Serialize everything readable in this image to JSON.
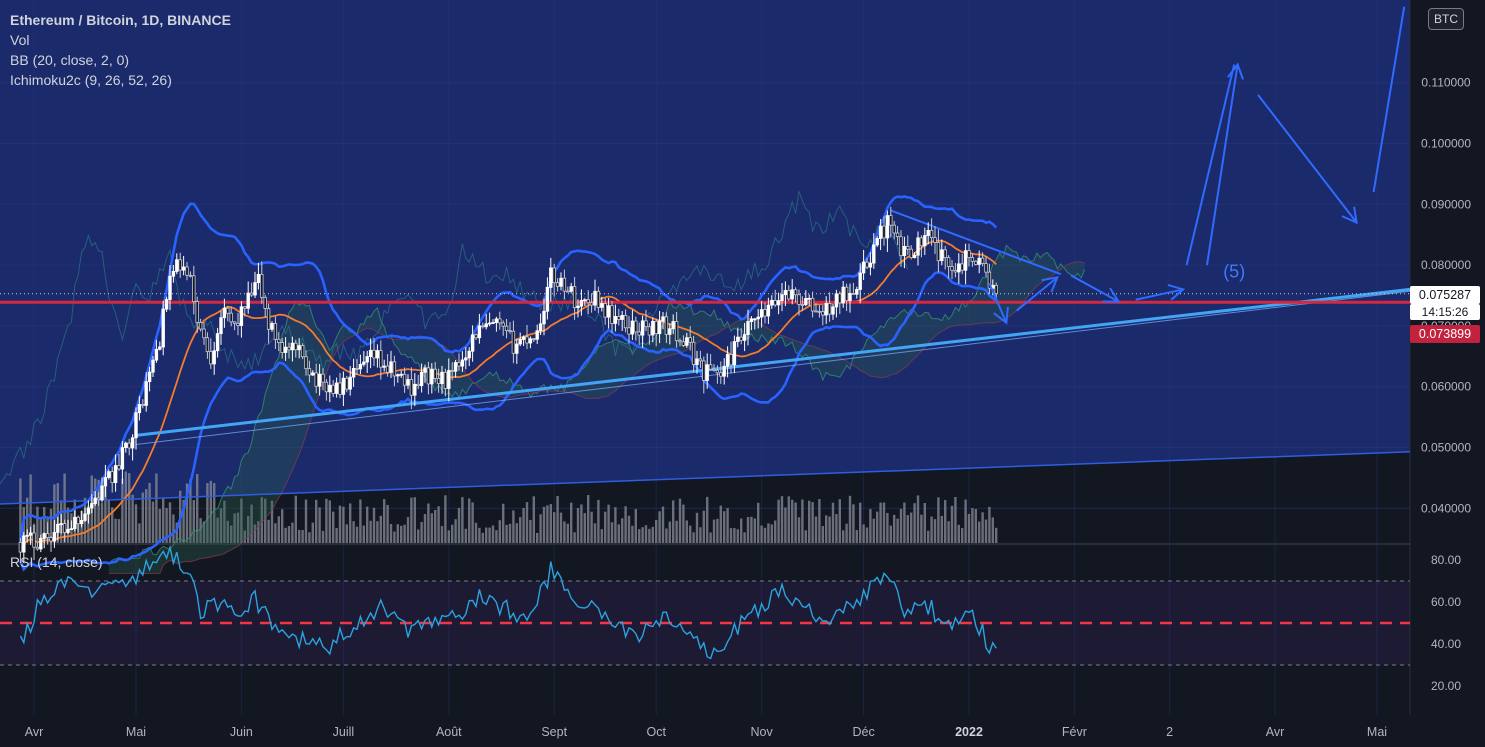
{
  "legend": {
    "title": "Ethereum / Bitcoin, 1D, BINANCE",
    "vol": "Vol",
    "bb": "BB (20, close, 2, 0)",
    "ichimoku": "Ichimoku2c (9, 26, 52, 26)"
  },
  "rsi_label": "RSI (14, close)",
  "currency_badge": "BTC",
  "price_tag": "0.075287",
  "countdown": "14:15:26",
  "level_tag": "0.073899",
  "wave_label": "(5)",
  "colors": {
    "background": "#131722",
    "chart_area": "#1a2a6b",
    "bb_band": "#2962ff",
    "trendline": "#42a5f5",
    "level": "#d5283f",
    "ma": "#f57c2a",
    "arrows": "#2f6bff",
    "rsi_line": "#2aa3e0",
    "rsi_mid": "#f23645"
  },
  "chart_data": [
    {
      "type": "candlestick",
      "title": "Ethereum / Bitcoin, 1D, BINANCE",
      "y_ticks": [
        "0.040000",
        "0.050000",
        "0.060000",
        "0.070000",
        "0.080000",
        "0.090000",
        "0.100000",
        "0.110000"
      ],
      "y_tick_values": [
        0.04,
        0.05,
        0.06,
        0.07,
        0.08,
        0.09,
        0.1,
        0.11
      ],
      "x_ticks": [
        "Avr",
        "Mai",
        "Juin",
        "Juill",
        "Août",
        "Sept",
        "Oct",
        "Nov",
        "Déc",
        "2022",
        "Févr",
        "2",
        "Avr",
        "Mai"
      ],
      "x_tick_bold": [
        "2022"
      ],
      "ylim": [
        0.0337,
        0.1223
      ],
      "current_price": 0.075287,
      "horizontal_level": 0.073899,
      "closes_anchors": [
        {
          "d": "2021-03-28",
          "c": 0.0344
        },
        {
          "d": "2021-04-03",
          "c": 0.035
        },
        {
          "d": "2021-04-12",
          "c": 0.0375
        },
        {
          "d": "2021-04-20",
          "c": 0.0422
        },
        {
          "d": "2021-04-26",
          "c": 0.047
        },
        {
          "d": "2021-05-01",
          "c": 0.0545
        },
        {
          "d": "2021-05-05",
          "c": 0.062
        },
        {
          "d": "2021-05-08",
          "c": 0.068
        },
        {
          "d": "2021-05-11",
          "c": 0.078
        },
        {
          "d": "2021-05-14",
          "c": 0.08
        },
        {
          "d": "2021-05-17",
          "c": 0.077
        },
        {
          "d": "2021-05-20",
          "c": 0.069
        },
        {
          "d": "2021-05-23",
          "c": 0.065
        },
        {
          "d": "2021-05-26",
          "c": 0.072
        },
        {
          "d": "2021-05-30",
          "c": 0.07
        },
        {
          "d": "2021-06-03",
          "c": 0.074
        },
        {
          "d": "2021-06-06",
          "c": 0.0775
        },
        {
          "d": "2021-06-09",
          "c": 0.07
        },
        {
          "d": "2021-06-14",
          "c": 0.066
        },
        {
          "d": "2021-06-19",
          "c": 0.065
        },
        {
          "d": "2021-06-24",
          "c": 0.0605
        },
        {
          "d": "2021-06-30",
          "c": 0.0595
        },
        {
          "d": "2021-07-05",
          "c": 0.062
        },
        {
          "d": "2021-07-10",
          "c": 0.065
        },
        {
          "d": "2021-07-15",
          "c": 0.0625
        },
        {
          "d": "2021-07-21",
          "c": 0.06
        },
        {
          "d": "2021-07-25",
          "c": 0.062
        },
        {
          "d": "2021-07-29",
          "c": 0.061
        },
        {
          "d": "2021-08-02",
          "c": 0.0615
        },
        {
          "d": "2021-08-05",
          "c": 0.065
        },
        {
          "d": "2021-08-09",
          "c": 0.069
        },
        {
          "d": "2021-08-15",
          "c": 0.07
        },
        {
          "d": "2021-08-20",
          "c": 0.067
        },
        {
          "d": "2021-08-27",
          "c": 0.069
        },
        {
          "d": "2021-08-31",
          "c": 0.078
        },
        {
          "d": "2021-09-04",
          "c": 0.077
        },
        {
          "d": "2021-09-08",
          "c": 0.0735
        },
        {
          "d": "2021-09-13",
          "c": 0.075
        },
        {
          "d": "2021-09-17",
          "c": 0.072
        },
        {
          "d": "2021-09-22",
          "c": 0.07
        },
        {
          "d": "2021-09-28",
          "c": 0.0695
        },
        {
          "d": "2021-10-03",
          "c": 0.07
        },
        {
          "d": "2021-10-07",
          "c": 0.069
        },
        {
          "d": "2021-10-11",
          "c": 0.066
        },
        {
          "d": "2021-10-15",
          "c": 0.0625
        },
        {
          "d": "2021-10-18",
          "c": 0.063
        },
        {
          "d": "2021-10-20",
          "c": 0.062
        },
        {
          "d": "2021-10-25",
          "c": 0.067
        },
        {
          "d": "2021-10-29",
          "c": 0.07
        },
        {
          "d": "2021-11-04",
          "c": 0.073
        },
        {
          "d": "2021-11-08",
          "c": 0.076
        },
        {
          "d": "2021-11-13",
          "c": 0.074
        },
        {
          "d": "2021-11-19",
          "c": 0.072
        },
        {
          "d": "2021-11-23",
          "c": 0.074
        },
        {
          "d": "2021-11-27",
          "c": 0.076
        },
        {
          "d": "2021-12-01",
          "c": 0.079
        },
        {
          "d": "2021-12-04",
          "c": 0.083
        },
        {
          "d": "2021-12-08",
          "c": 0.087
        },
        {
          "d": "2021-12-12",
          "c": 0.082
        },
        {
          "d": "2021-12-16",
          "c": 0.083
        },
        {
          "d": "2021-12-20",
          "c": 0.0845
        },
        {
          "d": "2021-12-24",
          "c": 0.081
        },
        {
          "d": "2021-12-29",
          "c": 0.08
        },
        {
          "d": "2022-01-02",
          "c": 0.082
        },
        {
          "d": "2022-01-05",
          "c": 0.08
        },
        {
          "d": "2022-01-07",
          "c": 0.077
        },
        {
          "d": "2022-01-09",
          "c": 0.0753
        }
      ]
    },
    {
      "type": "line",
      "title": "RSI (14, close)",
      "y_ticks": [
        "20.00",
        "40.00",
        "60.00",
        "80.00"
      ],
      "y_tick_values": [
        20,
        40,
        60,
        80
      ],
      "ylim": [
        11.3,
        88.9
      ],
      "band": [
        30,
        70
      ],
      "midline": 50,
      "anchors": [
        {
          "d": "2021-03-28",
          "v": 40
        },
        {
          "d": "2021-04-03",
          "v": 60
        },
        {
          "d": "2021-04-10",
          "v": 68
        },
        {
          "d": "2021-04-18",
          "v": 65
        },
        {
          "d": "2021-04-24",
          "v": 72
        },
        {
          "d": "2021-04-30",
          "v": 70
        },
        {
          "d": "2021-05-06",
          "v": 78
        },
        {
          "d": "2021-05-10",
          "v": 85
        },
        {
          "d": "2021-05-14",
          "v": 80
        },
        {
          "d": "2021-05-17",
          "v": 72
        },
        {
          "d": "2021-05-20",
          "v": 55
        },
        {
          "d": "2021-05-25",
          "v": 60
        },
        {
          "d": "2021-05-30",
          "v": 55
        },
        {
          "d": "2021-06-05",
          "v": 62
        },
        {
          "d": "2021-06-10",
          "v": 48
        },
        {
          "d": "2021-06-18",
          "v": 42
        },
        {
          "d": "2021-06-26",
          "v": 38
        },
        {
          "d": "2021-07-05",
          "v": 50
        },
        {
          "d": "2021-07-12",
          "v": 58
        },
        {
          "d": "2021-07-20",
          "v": 45
        },
        {
          "d": "2021-07-27",
          "v": 50
        },
        {
          "d": "2021-08-03",
          "v": 52
        },
        {
          "d": "2021-08-10",
          "v": 62
        },
        {
          "d": "2021-08-17",
          "v": 58
        },
        {
          "d": "2021-08-25",
          "v": 52
        },
        {
          "d": "2021-08-31",
          "v": 75
        },
        {
          "d": "2021-09-05",
          "v": 62
        },
        {
          "d": "2021-09-12",
          "v": 58
        },
        {
          "d": "2021-09-19",
          "v": 48
        },
        {
          "d": "2021-09-26",
          "v": 44
        },
        {
          "d": "2021-10-03",
          "v": 52
        },
        {
          "d": "2021-10-10",
          "v": 46
        },
        {
          "d": "2021-10-16",
          "v": 35
        },
        {
          "d": "2021-10-20",
          "v": 38
        },
        {
          "d": "2021-10-26",
          "v": 50
        },
        {
          "d": "2021-11-02",
          "v": 60
        },
        {
          "d": "2021-11-08",
          "v": 66
        },
        {
          "d": "2021-11-15",
          "v": 55
        },
        {
          "d": "2021-11-22",
          "v": 52
        },
        {
          "d": "2021-11-28",
          "v": 60
        },
        {
          "d": "2021-12-03",
          "v": 66
        },
        {
          "d": "2021-12-08",
          "v": 73
        },
        {
          "d": "2021-12-13",
          "v": 55
        },
        {
          "d": "2021-12-20",
          "v": 58
        },
        {
          "d": "2021-12-27",
          "v": 47
        },
        {
          "d": "2022-01-02",
          "v": 56
        },
        {
          "d": "2022-01-05",
          "v": 45
        },
        {
          "d": "2022-01-07",
          "v": 36
        },
        {
          "d": "2022-01-09",
          "v": 38
        }
      ]
    }
  ]
}
